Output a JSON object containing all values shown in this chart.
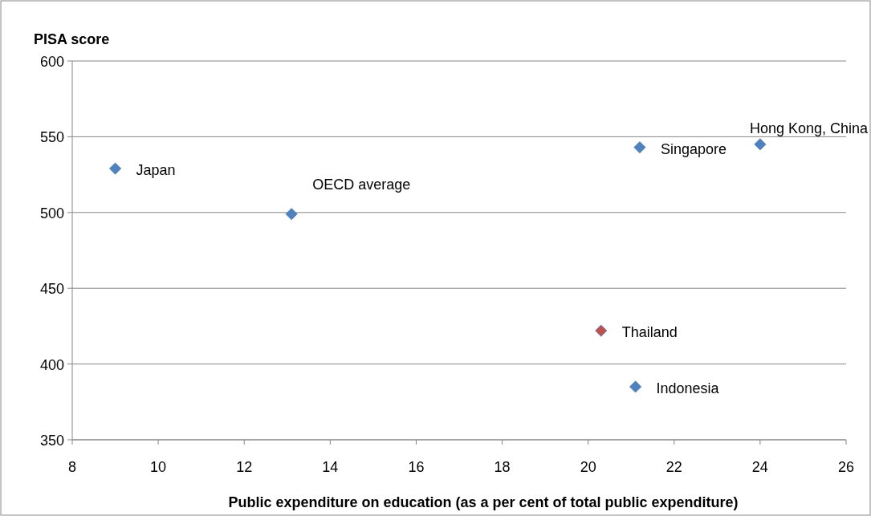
{
  "chart_data": {
    "type": "scatter",
    "ylabel": "PISA score",
    "xlabel": "Public expenditure on education (as a per cent of total public expenditure)",
    "x": [
      9.0,
      13.1,
      21.2,
      24.0,
      20.3,
      21.1
    ],
    "values": [
      529,
      499,
      543,
      545,
      422,
      385
    ],
    "colors": [
      "#4f81bd",
      "#4f81bd",
      "#4f81bd",
      "#4f81bd",
      "#c0504d",
      "#4f81bd"
    ],
    "xlim": [
      8,
      26
    ],
    "xticks": [
      8,
      10,
      12,
      14,
      16,
      18,
      20,
      22,
      24,
      26
    ],
    "ylim": [
      350,
      600
    ],
    "yticks": [
      350,
      400,
      450,
      500,
      550,
      600
    ],
    "grid": "y",
    "marker": "diamond",
    "annotations": [
      {
        "text": "Japan",
        "x": 9.0,
        "y": 529
      },
      {
        "text": "OECD average",
        "x": 13.1,
        "y": 499
      },
      {
        "text": "Singapore",
        "x": 21.2,
        "y": 543
      },
      {
        "text": "Hong Kong, China",
        "x": 24.0,
        "y": 545
      },
      {
        "text": "Thailand",
        "x": 20.3,
        "y": 422
      },
      {
        "text": "Indonesia",
        "x": 21.1,
        "y": 385
      }
    ]
  }
}
